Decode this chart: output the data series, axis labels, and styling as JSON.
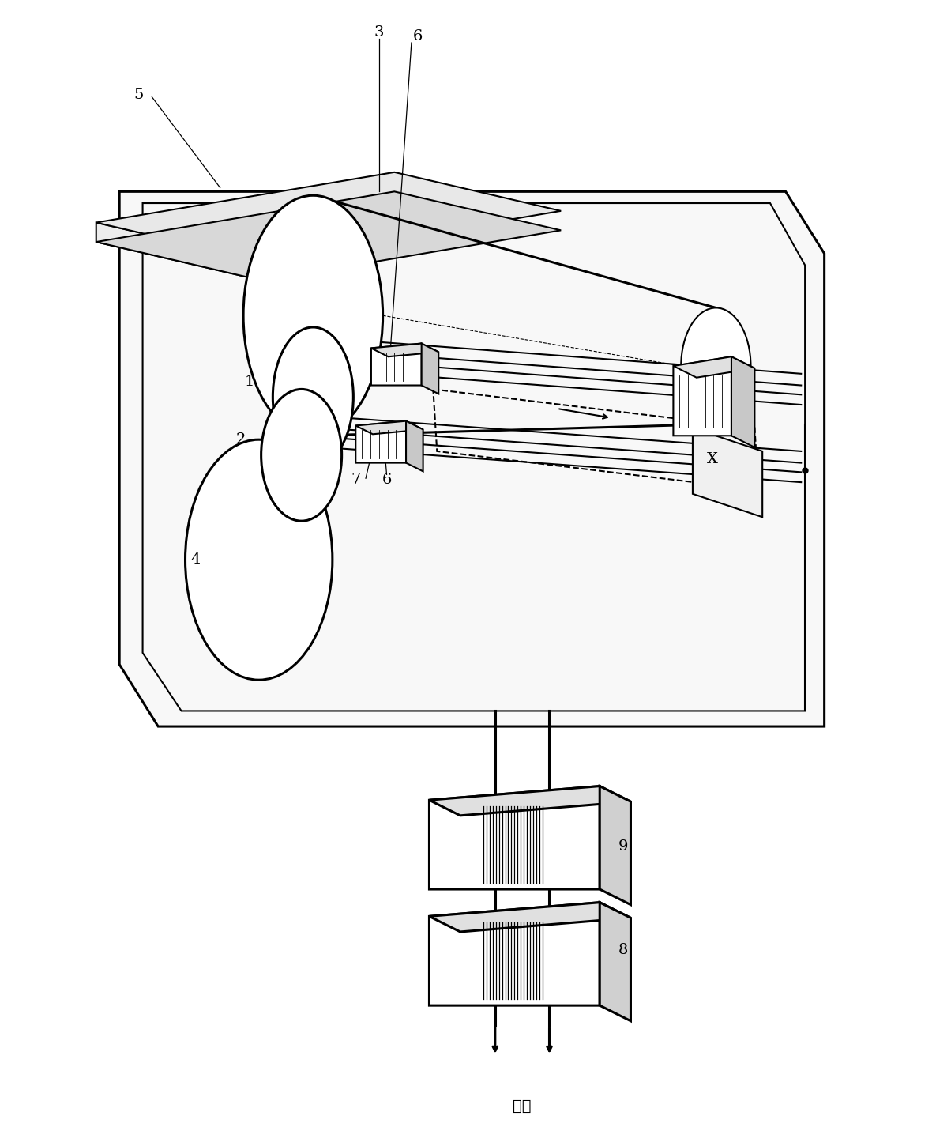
{
  "bg_color": "#ffffff",
  "line_color": "#000000",
  "label_fontsize": 14,
  "figsize": [
    11.85,
    14.36
  ],
  "dpi": 100
}
